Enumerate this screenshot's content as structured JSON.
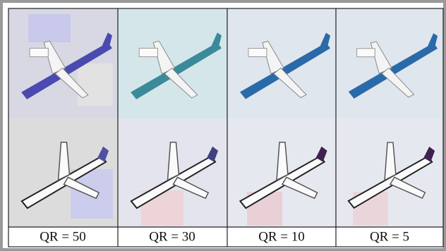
{
  "panels": [
    {
      "caption": "QR = 50"
    },
    {
      "caption": "QR = 30"
    },
    {
      "caption": "QR = 10"
    },
    {
      "caption": "QR = 5"
    }
  ]
}
